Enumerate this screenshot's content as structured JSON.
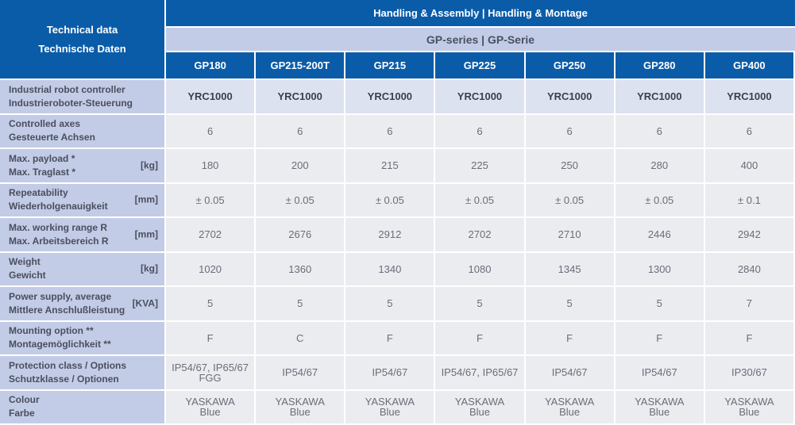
{
  "header": {
    "title": [
      "Technical data",
      "Technische Daten"
    ],
    "group": "Handling & Assembly | Handling & Montage",
    "series": "GP-series | GP-Serie",
    "models": [
      "GP180",
      "GP215-200T",
      "GP215",
      "GP225",
      "GP250",
      "GP280",
      "GP400"
    ]
  },
  "rows": [
    {
      "label": [
        "Industrial robot controller",
        "Industrieroboter-Steuerung"
      ],
      "values": [
        "YRC1000",
        "YRC1000",
        "YRC1000",
        "YRC1000",
        "YRC1000",
        "YRC1000",
        "YRC1000"
      ]
    },
    {
      "label": [
        "Controlled axes",
        "Gesteuerte Achsen"
      ],
      "values": [
        6,
        6,
        6,
        6,
        6,
        6,
        6
      ]
    },
    {
      "label": [
        "Max. payload *",
        "Max. Traglast *"
      ],
      "unit": "[kg]",
      "values": [
        180,
        200,
        215,
        225,
        250,
        280,
        400
      ]
    },
    {
      "label": [
        "Repeatability",
        "Wiederholgenauigkeit"
      ],
      "unit": "[mm]",
      "values": [
        "± 0.05",
        "± 0.05",
        "± 0.05",
        "± 0.05",
        "± 0.05",
        "± 0.05",
        "± 0.1"
      ]
    },
    {
      "label": [
        "Max. working range R",
        "Max. Arbeitsbereich R"
      ],
      "unit": "[mm]",
      "values": [
        2702,
        2676,
        2912,
        2702,
        2710,
        2446,
        2942
      ]
    },
    {
      "label": [
        "Weight",
        "Gewicht"
      ],
      "unit": "[kg]",
      "values": [
        1020,
        1360,
        1340,
        1080,
        1345,
        1300,
        2840
      ]
    },
    {
      "label": [
        "Power supply, average",
        "Mittlere Anschlußleistung"
      ],
      "unit": "[KVA]",
      "values": [
        5,
        5,
        5,
        5,
        5,
        5,
        7
      ]
    },
    {
      "label": [
        "Mounting option **",
        "Montagemöglichkeit **"
      ],
      "values": [
        "F",
        "C",
        "F",
        "F",
        "F",
        "F",
        "F"
      ]
    },
    {
      "label": [
        "Protection class / Options",
        "Schutzklasse / Optionen"
      ],
      "values": [
        "IP54/67, IP65/67 FGG",
        "IP54/67",
        "IP54/67",
        "IP54/67, IP65/67",
        "IP54/67",
        "IP54/67",
        "IP30/67"
      ]
    },
    {
      "label": [
        "Colour",
        "Farbe"
      ],
      "values": [
        [
          "YASKAWA",
          "Blue"
        ],
        [
          "YASKAWA",
          "Blue"
        ],
        [
          "YASKAWA",
          "Blue"
        ],
        [
          "YASKAWA",
          "Blue"
        ],
        [
          "YASKAWA",
          "Blue"
        ],
        [
          "YASKAWA",
          "Blue"
        ],
        [
          "YASKAWA",
          "Blue"
        ]
      ]
    }
  ]
}
